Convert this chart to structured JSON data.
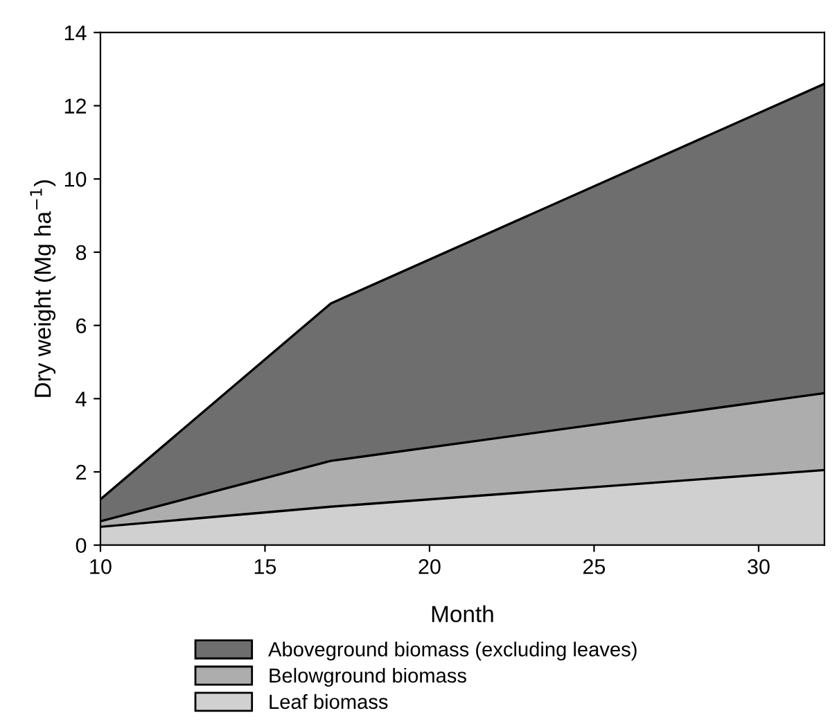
{
  "chart_data": {
    "type": "area",
    "stacked": true,
    "xlabel": "Month",
    "ylabel": "Dry weight (Mg ha$^{−1}$)",
    "x": [
      10,
      17,
      32
    ],
    "series": [
      {
        "name": "Leaf biomass",
        "color": "#d0d0d0",
        "values": [
          0.5,
          1.05,
          2.05
        ]
      },
      {
        "name": "Belowground biomass",
        "color": "#adadad",
        "values": [
          0.15,
          1.25,
          2.1
        ]
      },
      {
        "name": "Aboveground biomass (excluding leaves)",
        "color": "#6e6e6e",
        "values": [
          0.6,
          4.3,
          8.45
        ]
      }
    ],
    "xlim": [
      10,
      32
    ],
    "xticks": [
      10,
      15,
      20,
      25,
      30
    ],
    "ylim": [
      0,
      14
    ],
    "yticks": [
      0,
      2,
      4,
      6,
      8,
      10,
      12,
      14
    ],
    "grid": false,
    "legend": "bottom"
  }
}
